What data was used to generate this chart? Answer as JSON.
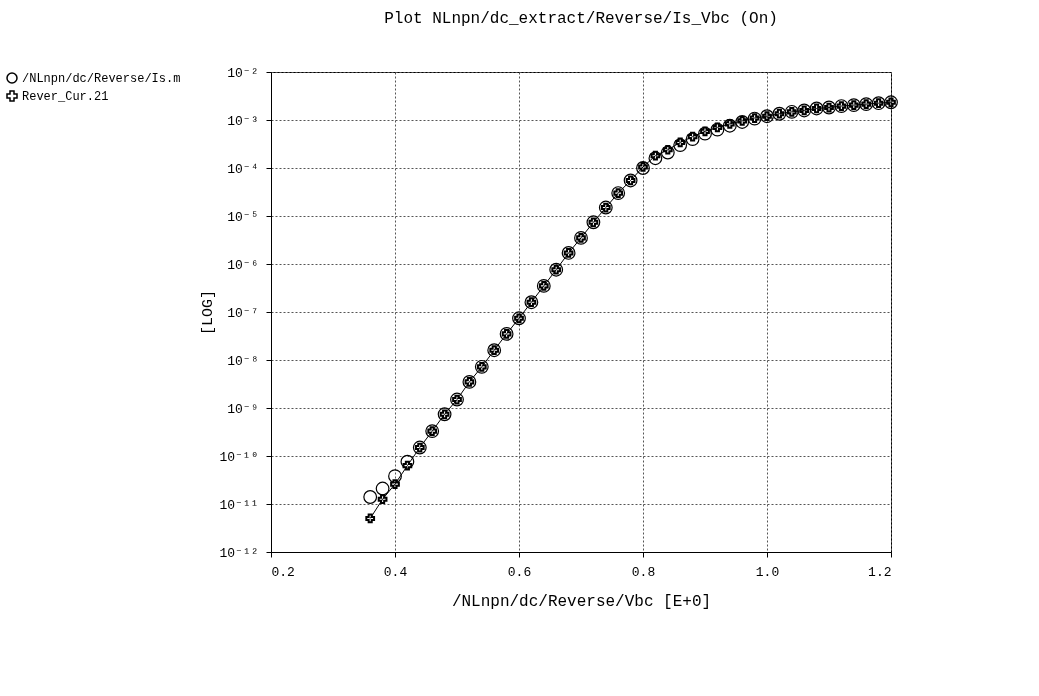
{
  "chart_data": {
    "type": "scatter",
    "title": "Plot NLnpn/dc_extract/Reverse/Is_Vbc (On)",
    "xlabel": "/NLnpn/dc/Reverse/Vbc    [E+0]",
    "ylabel": "[LOG]",
    "log": "y",
    "grid": true,
    "legend": "left",
    "xlim": [
      0.2,
      1.2
    ],
    "xticks": [
      0.2,
      0.4,
      0.6,
      0.8,
      {
        "value": 1,
        "label": "1.0"
      },
      1.2
    ],
    "ylim": [
      1e-12,
      0.01
    ],
    "yticks": [
      {
        "value": 1e-12,
        "label": "10⁻¹²"
      },
      {
        "value": 1e-11,
        "label": "10⁻¹¹"
      },
      {
        "value": 1e-10,
        "label": "10⁻¹⁰"
      },
      {
        "value": 1e-09,
        "label": "10⁻⁹"
      },
      {
        "value": 1e-08,
        "label": "10⁻⁸"
      },
      {
        "value": 1e-07,
        "label": "10⁻⁷"
      },
      {
        "value": 1e-06,
        "label": "10⁻⁶"
      },
      {
        "value": 1e-05,
        "label": "10⁻⁵"
      },
      {
        "value": 0.0001,
        "label": "10⁻⁴"
      },
      {
        "value": 0.001,
        "label": "10⁻³"
      },
      {
        "value": 0.01,
        "label": "10⁻²"
      }
    ],
    "x": [
      0.36,
      0.38,
      0.4,
      0.42,
      0.44,
      0.46,
      0.48,
      0.5,
      0.52,
      0.54,
      0.56,
      0.58,
      0.6,
      0.62,
      0.64,
      0.66,
      0.68,
      0.7,
      0.72,
      0.74,
      0.76,
      0.78,
      0.8,
      0.82,
      0.84,
      0.86,
      0.88,
      0.9,
      0.92,
      0.94,
      0.96,
      0.98,
      1.0,
      1.02,
      1.04,
      1.06,
      1.08,
      1.1,
      1.12,
      1.14,
      1.16,
      1.18,
      1.2
    ],
    "series": [
      {
        "name": "/NLnpn/dc/Reverse/Is.m",
        "marker": "circle",
        "color": "#000000",
        "values": [
          1.4e-11,
          2.1e-11,
          3.8e-11,
          7.6e-11,
          1.5e-10,
          3.3e-10,
          7.4e-10,
          1.5e-09,
          3.5e-09,
          7.2e-09,
          1.6e-08,
          3.5e-08,
          7.4e-08,
          1.6e-07,
          3.5e-07,
          7.6e-07,
          1.7e-06,
          3.5e-06,
          7.4e-06,
          1.5e-05,
          3e-05,
          5.5e-05,
          0.0001,
          0.00016,
          0.00021,
          0.0003,
          0.0004,
          0.00052,
          0.00063,
          0.00076,
          0.00091,
          0.00107,
          0.0012,
          0.00135,
          0.00148,
          0.00158,
          0.00174,
          0.00182,
          0.00195,
          0.00204,
          0.00214,
          0.00224,
          0.00234
        ]
      },
      {
        "name": "Rever_Cur.21",
        "type": "line",
        "marker": "cross",
        "line_style": "solid",
        "color": "#000000",
        "values": [
          5e-12,
          1.26e-11,
          2.6e-11,
          6.3e-11,
          1.5e-10,
          3.3e-10,
          7.4e-10,
          1.5e-09,
          3.5e-09,
          7.2e-09,
          1.6e-08,
          3.5e-08,
          7.4e-08,
          1.6e-07,
          3.5e-07,
          7.6e-07,
          1.7e-06,
          3.5e-06,
          7.4e-06,
          1.5e-05,
          3e-05,
          5.5e-05,
          0.000105,
          0.00018,
          0.00024,
          0.00034,
          0.00045,
          0.00058,
          0.0007,
          0.00083,
          0.00096,
          0.0011,
          0.0012,
          0.00135,
          0.00148,
          0.00158,
          0.00174,
          0.00182,
          0.00195,
          0.00204,
          0.00214,
          0.00224,
          0.00234
        ]
      }
    ]
  }
}
